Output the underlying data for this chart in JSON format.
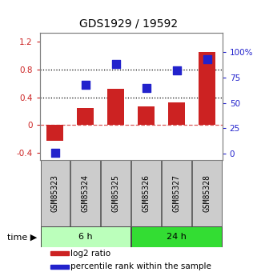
{
  "title": "GDS1929 / 19592",
  "samples": [
    "GSM85323",
    "GSM85324",
    "GSM85325",
    "GSM85326",
    "GSM85327",
    "GSM85328"
  ],
  "log2_ratio": [
    -0.22,
    0.25,
    0.52,
    0.27,
    0.33,
    1.05
  ],
  "percentile_rank": [
    1.0,
    68.0,
    88.0,
    65.0,
    82.0,
    93.0
  ],
  "bar_color": "#cc2222",
  "dot_color": "#2222cc",
  "left_ylim": [
    -0.5,
    1.32
  ],
  "right_ylim": [
    -6.25,
    118.75
  ],
  "left_yticks": [
    -0.4,
    0.0,
    0.4,
    0.8,
    1.2
  ],
  "right_yticks": [
    0,
    25,
    50,
    75,
    100
  ],
  "right_yticklabels": [
    "0",
    "25",
    "50",
    "75",
    "100%"
  ],
  "hlines_dotted": [
    0.4,
    0.8
  ],
  "hline_dashed_color": "#cc2222",
  "group_labels": [
    "6 h",
    "24 h"
  ],
  "group_colors": [
    "#bbffbb",
    "#33dd33"
  ],
  "group_ranges": [
    [
      0,
      3
    ],
    [
      3,
      6
    ]
  ],
  "legend_items": [
    "log2 ratio",
    "percentile rank within the sample"
  ],
  "legend_colors": [
    "#cc2222",
    "#2222cc"
  ],
  "bg_color": "#ffffff",
  "bar_width": 0.55,
  "dot_size": 55,
  "title_fontsize": 10,
  "tick_fontsize": 7.5,
  "label_fontsize": 7.5,
  "time_fontsize": 8
}
